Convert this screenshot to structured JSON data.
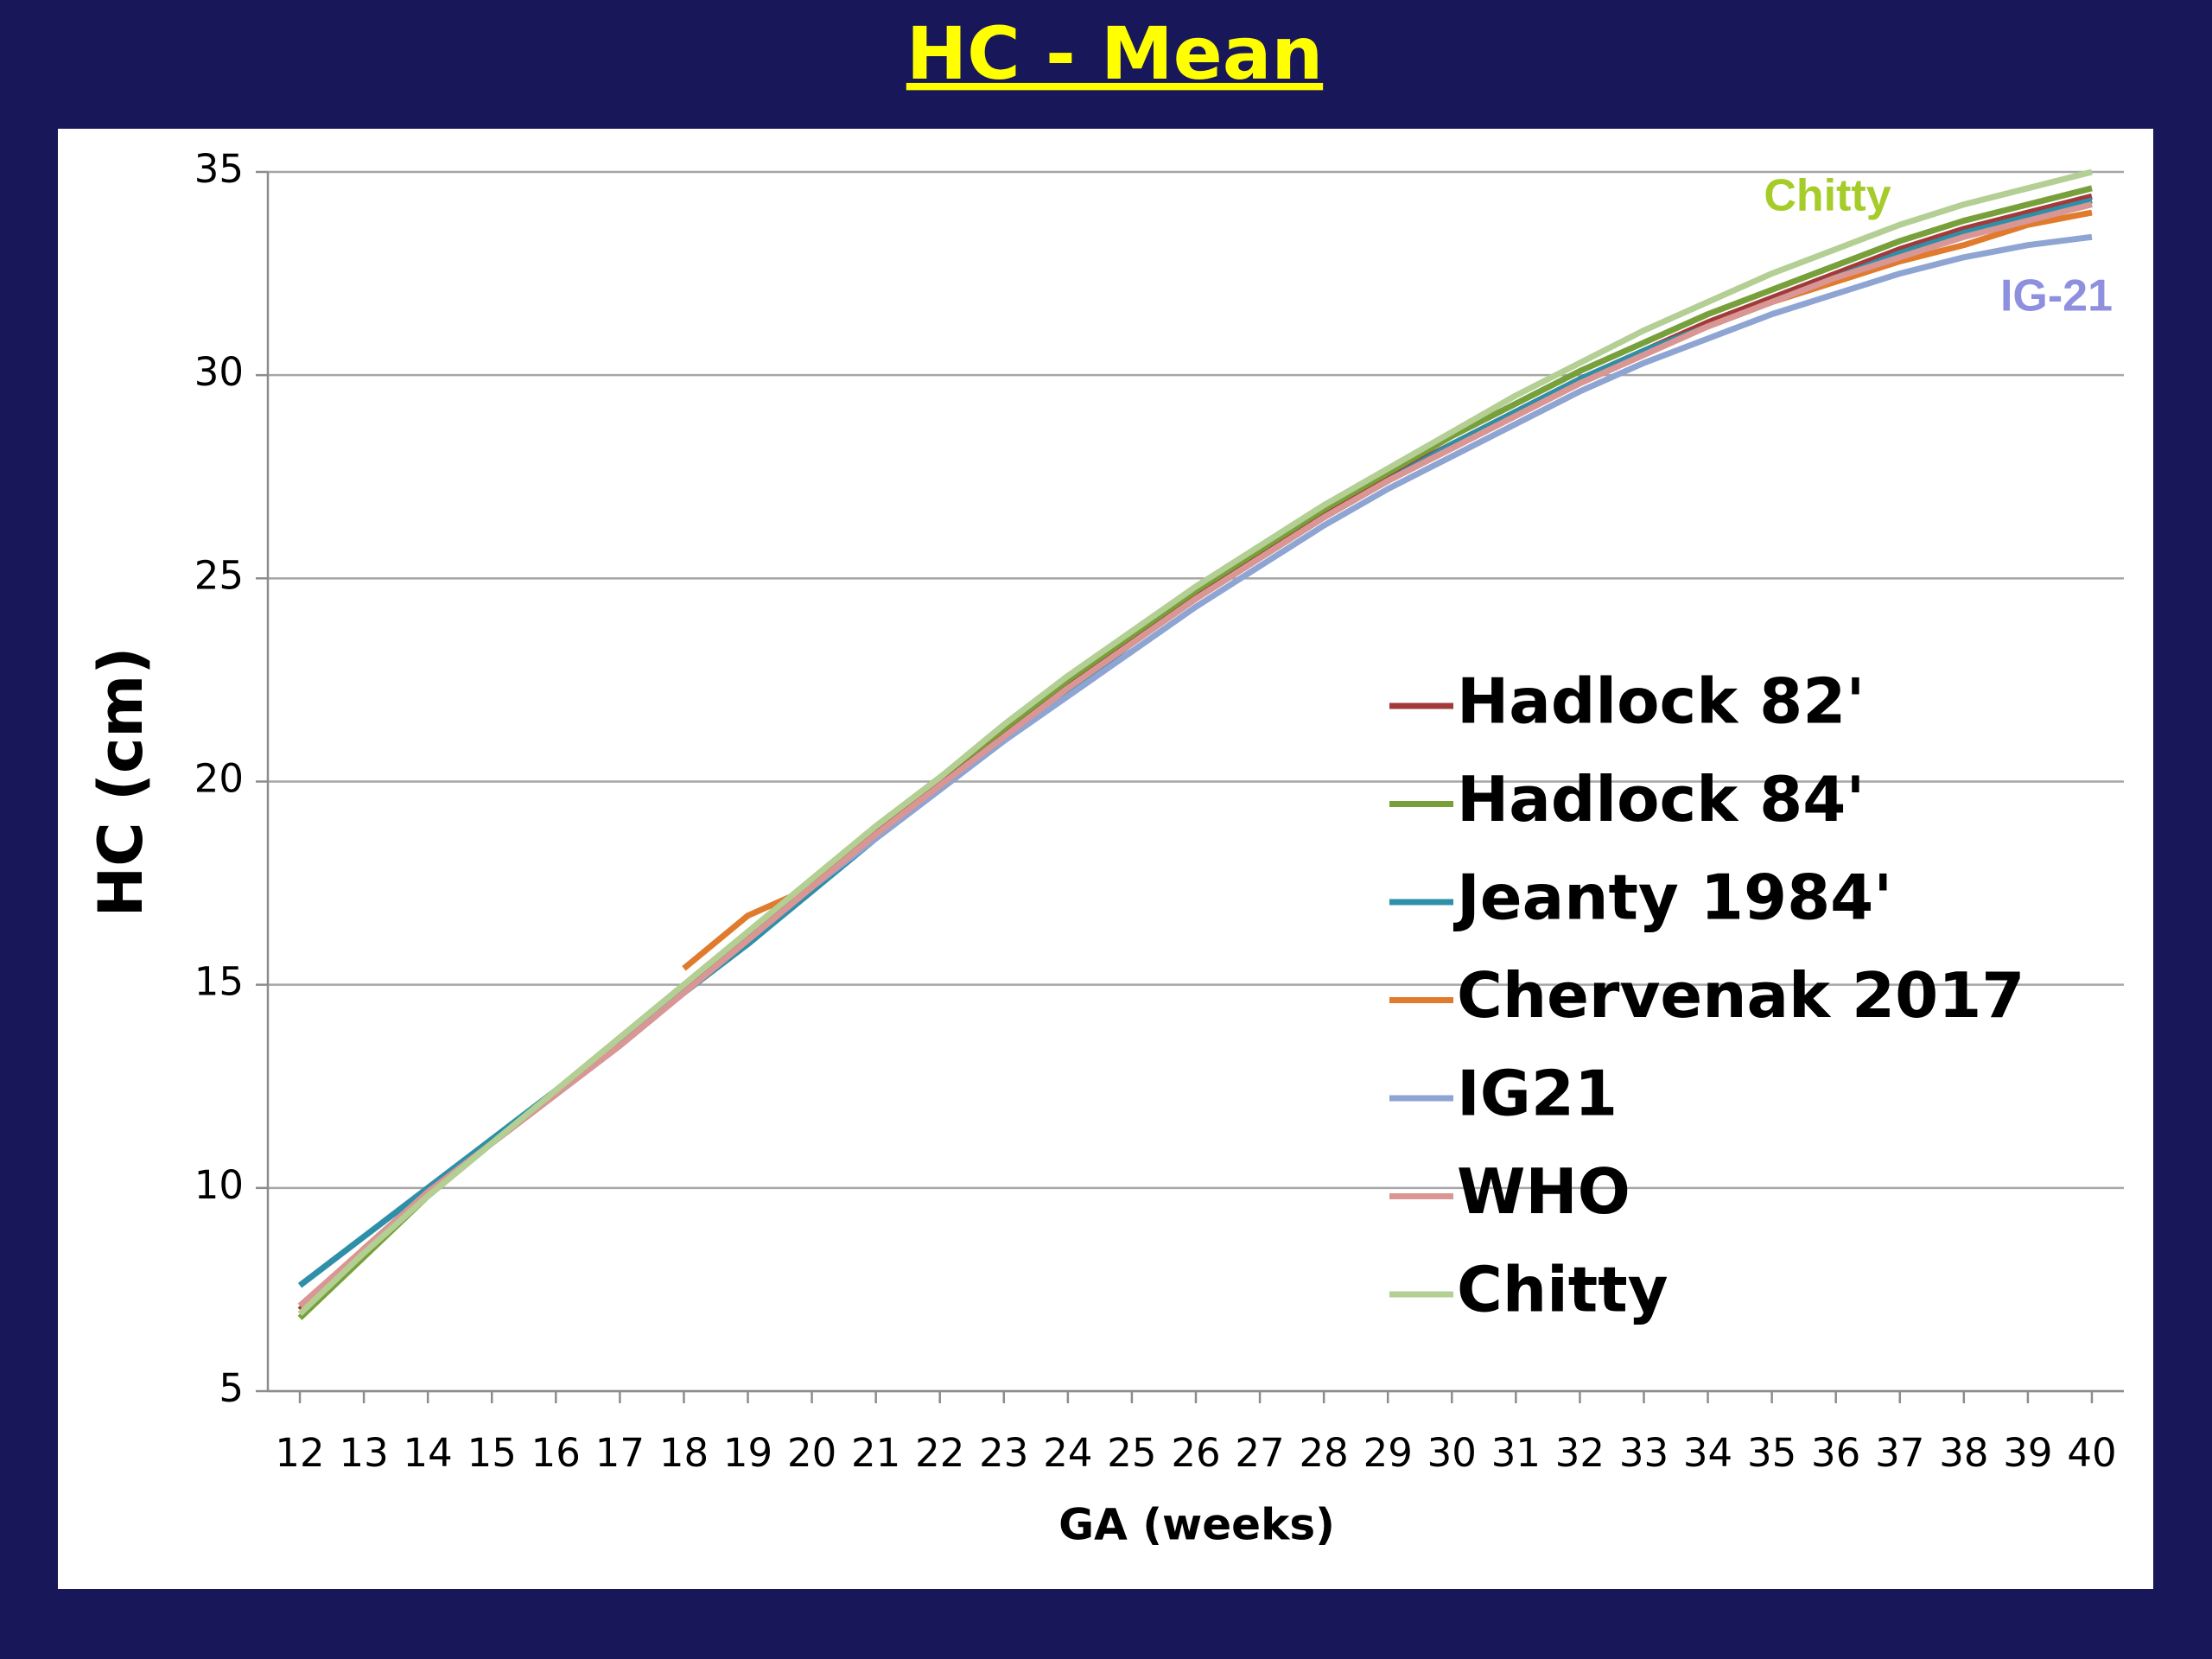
{
  "chart_data": {
    "type": "line",
    "title": "HC - Mean",
    "x_label": "GA (weeks)",
    "y_label": "HC (cm)",
    "x": [
      12,
      13,
      14,
      15,
      16,
      17,
      18,
      19,
      20,
      21,
      22,
      23,
      24,
      25,
      26,
      27,
      28,
      29,
      30,
      31,
      32,
      33,
      34,
      35,
      36,
      37,
      38,
      39,
      40
    ],
    "xlim": [
      11.5,
      40.5
    ],
    "xticks": [
      12,
      13,
      14,
      15,
      16,
      17,
      18,
      19,
      20,
      21,
      22,
      23,
      24,
      25,
      26,
      27,
      28,
      29,
      30,
      31,
      32,
      33,
      34,
      35,
      36,
      37,
      38,
      39,
      40
    ],
    "ylim": [
      5,
      35
    ],
    "yticks": [
      5,
      10,
      15,
      20,
      25,
      30,
      35
    ],
    "grid": true,
    "legend": "right",
    "series": [
      {
        "name": "Hadlock 82'",
        "color": "#a33a3a",
        "values": [
          7.0,
          8.5,
          9.9,
          11.1,
          12.3,
          13.6,
          14.9,
          16.2,
          17.5,
          18.8,
          20.0,
          21.2,
          22.4,
          23.5,
          24.6,
          25.6,
          26.6,
          27.5,
          28.3,
          29.1,
          29.9,
          30.6,
          31.3,
          31.9,
          32.5,
          33.1,
          33.6,
          34.0,
          34.4
        ]
      },
      {
        "name": "Hadlock 84'",
        "color": "#77a03a",
        "values": [
          6.8,
          8.3,
          9.8,
          11.1,
          12.4,
          13.7,
          15.0,
          16.3,
          17.6,
          18.9,
          20.1,
          21.3,
          22.5,
          23.6,
          24.7,
          25.7,
          26.7,
          27.6,
          28.5,
          29.3,
          30.1,
          30.8,
          31.5,
          32.1,
          32.7,
          33.3,
          33.8,
          34.2,
          34.6
        ]
      },
      {
        "name": "Jeanty 1984'",
        "color": "#2e8fa8",
        "values": [
          7.6,
          8.8,
          10.0,
          11.2,
          12.4,
          13.6,
          14.8,
          16.0,
          17.3,
          18.6,
          19.8,
          21.0,
          22.2,
          23.4,
          24.5,
          25.5,
          26.5,
          27.4,
          28.3,
          29.1,
          29.9,
          30.6,
          31.2,
          31.8,
          32.4,
          33.0,
          33.5,
          33.9,
          34.3
        ]
      },
      {
        "name": "Chervenak 2017",
        "color": "#e07b2e",
        "values": [
          null,
          null,
          null,
          null,
          null,
          null,
          15.4,
          16.7,
          17.4,
          18.7,
          19.9,
          21.1,
          22.3,
          23.4,
          24.5,
          25.5,
          26.5,
          27.4,
          28.2,
          29.0,
          29.8,
          30.5,
          31.2,
          31.8,
          32.3,
          32.8,
          33.2,
          33.7,
          34.0
        ]
      },
      {
        "name": "IG21",
        "color": "#8ea4d2",
        "values": [
          null,
          null,
          9.9,
          11.1,
          12.3,
          13.5,
          14.8,
          16.1,
          17.4,
          18.6,
          19.8,
          21.0,
          22.1,
          23.2,
          24.3,
          25.3,
          26.3,
          27.2,
          28.0,
          28.8,
          29.6,
          30.3,
          30.9,
          31.5,
          32.0,
          32.5,
          32.9,
          33.2,
          33.4
        ]
      },
      {
        "name": "WHO",
        "color": "#d99694",
        "values": [
          7.1,
          8.5,
          9.9,
          11.1,
          12.3,
          13.5,
          14.8,
          16.1,
          17.4,
          18.7,
          19.9,
          21.1,
          22.3,
          23.4,
          24.5,
          25.5,
          26.5,
          27.4,
          28.2,
          29.0,
          29.8,
          30.5,
          31.2,
          31.8,
          32.4,
          32.9,
          33.4,
          33.8,
          34.2
        ]
      },
      {
        "name": "Chitty",
        "color": "#b3cf94",
        "values": [
          6.9,
          8.4,
          9.8,
          11.1,
          12.4,
          13.7,
          15.0,
          16.3,
          17.6,
          18.9,
          20.1,
          21.4,
          22.6,
          23.7,
          24.8,
          25.8,
          26.8,
          27.7,
          28.6,
          29.5,
          30.3,
          31.1,
          31.8,
          32.5,
          33.1,
          33.7,
          34.2,
          34.6,
          35.0
        ]
      }
    ],
    "annotations": [
      {
        "text": "Chitty",
        "color": "#a6cc2a"
      },
      {
        "text": "IG-21",
        "color": "#8f8fe0"
      }
    ]
  }
}
